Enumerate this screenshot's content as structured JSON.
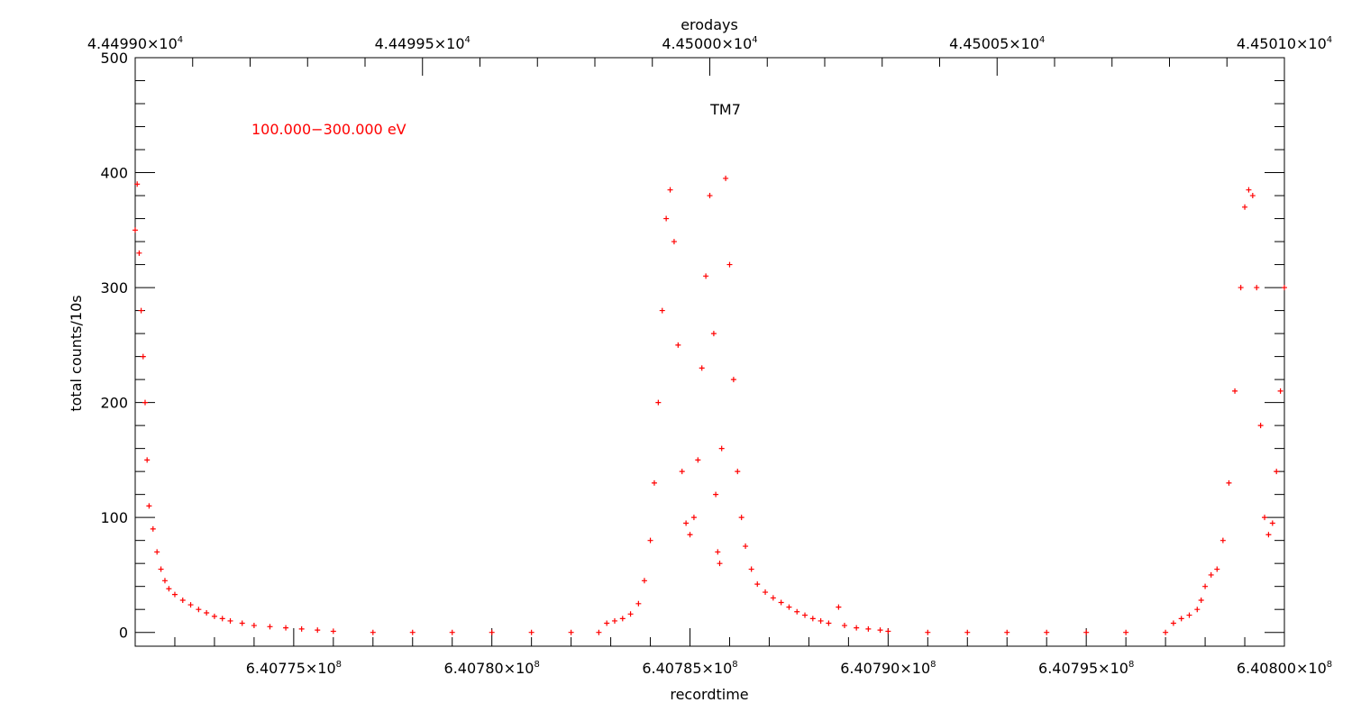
{
  "chart_data": {
    "type": "scatter",
    "marker": "+",
    "color": "#ff0000",
    "title": "TM7",
    "annotation": "100.000−300.000 eV",
    "xlabel": "recordtime",
    "ylabel": "total counts/10s",
    "top_xlabel": "erodays",
    "xlim": [
      640771000,
      640800000
    ],
    "ylim": [
      -12,
      500
    ],
    "top_xlim": [
      44499.0,
      44501.0
    ],
    "grid": false,
    "legend": "none",
    "yticks": [
      {
        "value": 0,
        "label": "0"
      },
      {
        "value": 100,
        "label": "100"
      },
      {
        "value": 200,
        "label": "200"
      },
      {
        "value": 300,
        "label": "300"
      },
      {
        "value": 400,
        "label": "400"
      },
      {
        "value": 500,
        "label": "500"
      }
    ],
    "xticks": [
      {
        "value": 640775000,
        "mant": "6.40775×10",
        "exp": "8"
      },
      {
        "value": 640780000,
        "mant": "6.40780×10",
        "exp": "8"
      },
      {
        "value": 640785000,
        "mant": "6.40785×10",
        "exp": "8"
      },
      {
        "value": 640790000,
        "mant": "6.40790×10",
        "exp": "8"
      },
      {
        "value": 640795000,
        "mant": "6.40795×10",
        "exp": "8"
      },
      {
        "value": 640800000,
        "mant": "6.40800×10",
        "exp": "8"
      }
    ],
    "top_ticks": [
      {
        "value": 44499.0,
        "mant": "4.44990×10",
        "exp": "4"
      },
      {
        "value": 44499.5,
        "mant": "4.44995×10",
        "exp": "4"
      },
      {
        "value": 44500.0,
        "mant": "4.45000×10",
        "exp": "4"
      },
      {
        "value": 44500.5,
        "mant": "4.45005×10",
        "exp": "4"
      },
      {
        "value": 44501.0,
        "mant": "4.45010×10",
        "exp": "4"
      }
    ],
    "series": [
      {
        "points": [
          [
            640771000,
            350
          ],
          [
            640771050,
            390
          ],
          [
            640771100,
            330
          ],
          [
            640771150,
            280
          ],
          [
            640771200,
            240
          ],
          [
            640771250,
            200
          ],
          [
            640771300,
            150
          ],
          [
            640771350,
            110
          ],
          [
            640771450,
            90
          ],
          [
            640771550,
            70
          ],
          [
            640771650,
            55
          ],
          [
            640771750,
            45
          ],
          [
            640771850,
            38
          ],
          [
            640772000,
            33
          ],
          [
            640772200,
            28
          ],
          [
            640772400,
            24
          ],
          [
            640772600,
            20
          ],
          [
            640772800,
            17
          ],
          [
            640773000,
            14
          ],
          [
            640773200,
            12
          ],
          [
            640773400,
            10
          ],
          [
            640773700,
            8
          ],
          [
            640774000,
            6
          ],
          [
            640774400,
            5
          ],
          [
            640774800,
            4
          ],
          [
            640775200,
            3
          ],
          [
            640775600,
            2
          ],
          [
            640776000,
            1
          ],
          [
            640777000,
            0
          ],
          [
            640778000,
            0
          ],
          [
            640779000,
            0
          ],
          [
            640780000,
            0
          ],
          [
            640781000,
            0
          ],
          [
            640782000,
            0
          ],
          [
            640782700,
            0
          ],
          [
            640782900,
            8
          ],
          [
            640783100,
            10
          ],
          [
            640783300,
            12
          ],
          [
            640783500,
            16
          ],
          [
            640783700,
            25
          ],
          [
            640783850,
            45
          ],
          [
            640784000,
            80
          ],
          [
            640784100,
            130
          ],
          [
            640784200,
            200
          ],
          [
            640784300,
            280
          ],
          [
            640784400,
            360
          ],
          [
            640784500,
            385
          ],
          [
            640784600,
            340
          ],
          [
            640784700,
            250
          ],
          [
            640784800,
            140
          ],
          [
            640784900,
            95
          ],
          [
            640785000,
            85
          ],
          [
            640785100,
            100
          ],
          [
            640785200,
            150
          ],
          [
            640785300,
            230
          ],
          [
            640785400,
            310
          ],
          [
            640785500,
            380
          ],
          [
            640785600,
            260
          ],
          [
            640785650,
            120
          ],
          [
            640785700,
            70
          ],
          [
            640785750,
            60
          ],
          [
            640785800,
            160
          ],
          [
            640785900,
            395
          ],
          [
            640786000,
            320
          ],
          [
            640786100,
            220
          ],
          [
            640786200,
            140
          ],
          [
            640786300,
            100
          ],
          [
            640786400,
            75
          ],
          [
            640786550,
            55
          ],
          [
            640786700,
            42
          ],
          [
            640786900,
            35
          ],
          [
            640787100,
            30
          ],
          [
            640787300,
            26
          ],
          [
            640787500,
            22
          ],
          [
            640787700,
            18
          ],
          [
            640787900,
            15
          ],
          [
            640788100,
            12
          ],
          [
            640788300,
            10
          ],
          [
            640788500,
            8
          ],
          [
            640788750,
            22
          ],
          [
            640788900,
            6
          ],
          [
            640789200,
            4
          ],
          [
            640789500,
            3
          ],
          [
            640789800,
            2
          ],
          [
            640790000,
            1
          ],
          [
            640791000,
            0
          ],
          [
            640792000,
            0
          ],
          [
            640793000,
            0
          ],
          [
            640794000,
            0
          ],
          [
            640795000,
            0
          ],
          [
            640796000,
            0
          ],
          [
            640797000,
            0
          ],
          [
            640797200,
            8
          ],
          [
            640797400,
            12
          ],
          [
            640797600,
            15
          ],
          [
            640797800,
            20
          ],
          [
            640797900,
            28
          ],
          [
            640798000,
            40
          ],
          [
            640798150,
            50
          ],
          [
            640798300,
            55
          ],
          [
            640798450,
            80
          ],
          [
            640798600,
            130
          ],
          [
            640798750,
            210
          ],
          [
            640798900,
            300
          ],
          [
            640799000,
            370
          ],
          [
            640799100,
            385
          ],
          [
            640799200,
            380
          ],
          [
            640799300,
            300
          ],
          [
            640799400,
            180
          ],
          [
            640799500,
            100
          ],
          [
            640799600,
            85
          ],
          [
            640799700,
            95
          ],
          [
            640799800,
            140
          ],
          [
            640799900,
            210
          ],
          [
            640800000,
            300
          ]
        ]
      }
    ]
  }
}
